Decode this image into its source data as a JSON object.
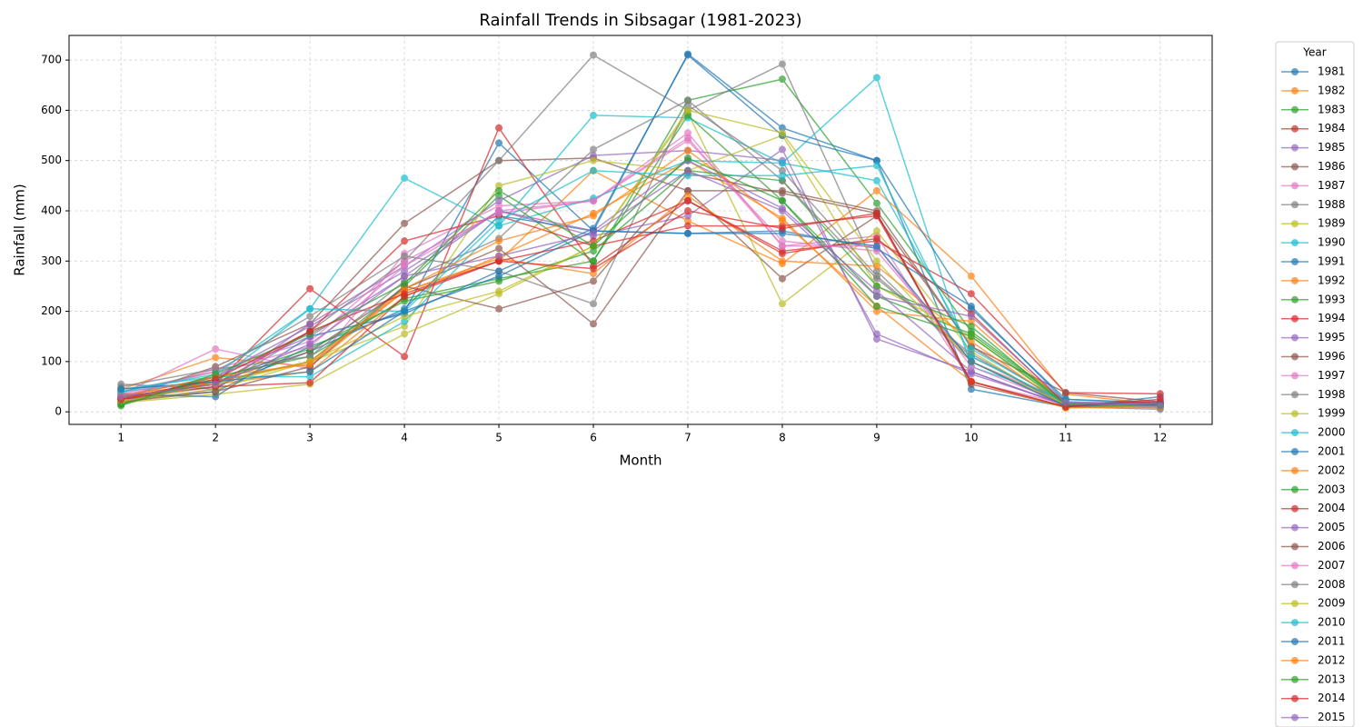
{
  "chart_data": {
    "type": "line",
    "title": "Rainfall Trends in Sibsagar (1981-2023)",
    "x_label": "Month",
    "y_label": "Rainfall (mm)",
    "legend_title": "Year",
    "legend": "outside right",
    "grid": true,
    "marker": "circle",
    "x": [
      1,
      2,
      3,
      4,
      5,
      6,
      7,
      8,
      9,
      10,
      11,
      12
    ],
    "xlim": [
      0.45,
      12.55
    ],
    "xticks": [
      1,
      2,
      3,
      4,
      5,
      6,
      7,
      8,
      9,
      10,
      11,
      12
    ],
    "ylim": [
      -25,
      749
    ],
    "yticks": [
      0,
      100,
      200,
      300,
      400,
      500,
      600,
      700
    ],
    "series": [
      {
        "name": "1981",
        "color": "#1f77b4",
        "values": [
          25,
          40,
          130,
          200,
          535,
          360,
          712,
          565,
          500,
          45,
          10,
          30
        ]
      },
      {
        "name": "1982",
        "color": "#ff7f0e",
        "values": [
          45,
          108,
          90,
          240,
          300,
          480,
          380,
          295,
          440,
          270,
          35,
          15
        ]
      },
      {
        "name": "1983",
        "color": "#2ca02c",
        "values": [
          15,
          60,
          100,
          250,
          430,
          300,
          620,
          662,
          415,
          160,
          20,
          10
        ]
      },
      {
        "name": "1984",
        "color": "#d62728",
        "values": [
          30,
          55,
          245,
          110,
          565,
          290,
          420,
          320,
          340,
          235,
          38,
          36
        ]
      },
      {
        "name": "1985",
        "color": "#9467bd",
        "values": [
          20,
          70,
          170,
          280,
          400,
          350,
          390,
          522,
          145,
          80,
          12,
          8
        ]
      },
      {
        "name": "1986",
        "color": "#8c564b",
        "values": [
          25,
          90,
          175,
          375,
          500,
          505,
          440,
          265,
          390,
          130,
          38,
          20
        ]
      },
      {
        "name": "1987",
        "color": "#e377c2",
        "values": [
          35,
          125,
          85,
          315,
          410,
          420,
          555,
          330,
          350,
          60,
          15,
          20
        ]
      },
      {
        "name": "1988",
        "color": "#7f7f7f",
        "values": [
          55,
          45,
          160,
          300,
          500,
          710,
          600,
          692,
          280,
          100,
          10,
          5
        ]
      },
      {
        "name": "1989",
        "color": "#bcbd22",
        "values": [
          18,
          35,
          55,
          155,
          235,
          330,
          595,
          215,
          360,
          120,
          8,
          12
        ]
      },
      {
        "name": "1990",
        "color": "#17becf",
        "values": [
          40,
          60,
          205,
          465,
          370,
          590,
          585,
          495,
          665,
          90,
          25,
          15
        ]
      },
      {
        "name": "1991",
        "color": "#1f77b4",
        "values": [
          30,
          50,
          120,
          205,
          390,
          360,
          355,
          360,
          325,
          210,
          20,
          15
        ]
      },
      {
        "name": "1992",
        "color": "#ff7f0e",
        "values": [
          35,
          55,
          80,
          230,
          310,
          395,
          500,
          385,
          200,
          180,
          15,
          20
        ]
      },
      {
        "name": "1993",
        "color": "#2ca02c",
        "values": [
          15,
          70,
          110,
          225,
          265,
          300,
          590,
          420,
          230,
          155,
          18,
          10
        ]
      },
      {
        "name": "1994",
        "color": "#d62728",
        "values": [
          30,
          55,
          160,
          340,
          390,
          330,
          370,
          370,
          390,
          60,
          10,
          15
        ]
      },
      {
        "name": "1995",
        "color": "#9467bd",
        "values": [
          20,
          45,
          175,
          290,
          420,
          510,
          520,
          500,
          155,
          75,
          15,
          10
        ]
      },
      {
        "name": "1996",
        "color": "#8c564b",
        "values": [
          25,
          60,
          120,
          245,
          325,
          175,
          440,
          440,
          400,
          130,
          15,
          10
        ]
      },
      {
        "name": "1997",
        "color": "#e377c2",
        "values": [
          30,
          85,
          140,
          300,
          395,
          420,
          540,
          340,
          320,
          100,
          20,
          15
        ]
      },
      {
        "name": "1998",
        "color": "#7f7f7f",
        "values": [
          40,
          80,
          190,
          310,
          280,
          215,
          610,
          480,
          270,
          110,
          15,
          10
        ]
      },
      {
        "name": "1999",
        "color": "#bcbd22",
        "values": [
          20,
          45,
          100,
          170,
          450,
          500,
          480,
          550,
          250,
          150,
          12,
          10
        ]
      },
      {
        "name": "2000",
        "color": "#17becf",
        "values": [
          45,
          70,
          70,
          180,
          370,
          425,
          500,
          495,
          460,
          125,
          18,
          12
        ]
      },
      {
        "name": "2001",
        "color": "#1f77b4",
        "values": [
          35,
          30,
          150,
          195,
          280,
          365,
          710,
          550,
          500,
          205,
          25,
          18
        ]
      },
      {
        "name": "2002",
        "color": "#ff7f0e",
        "values": [
          25,
          60,
          100,
          240,
          305,
          275,
          430,
          300,
          290,
          140,
          10,
          15
        ]
      },
      {
        "name": "2003",
        "color": "#2ca02c",
        "values": [
          18,
          65,
          125,
          220,
          260,
          320,
          480,
          460,
          250,
          170,
          12,
          12
        ]
      },
      {
        "name": "2004",
        "color": "#d62728",
        "values": [
          25,
          50,
          58,
          230,
          300,
          340,
          420,
          315,
          345,
          195,
          15,
          20
        ]
      },
      {
        "name": "2005",
        "color": "#9467bd",
        "values": [
          30,
          70,
          150,
          270,
          400,
          360,
          500,
          405,
          240,
          80,
          12,
          18
        ]
      },
      {
        "name": "2006",
        "color": "#8c564b",
        "values": [
          20,
          40,
          90,
          250,
          205,
          260,
          475,
          435,
          395,
          55,
          10,
          15
        ]
      },
      {
        "name": "2007",
        "color": "#e377c2",
        "values": [
          35,
          80,
          130,
          290,
          400,
          420,
          545,
          330,
          330,
          90,
          15,
          12
        ]
      },
      {
        "name": "2008",
        "color": "#7f7f7f",
        "values": [
          50,
          85,
          110,
          260,
          345,
          522,
          620,
          460,
          265,
          115,
          12,
          10
        ]
      },
      {
        "name": "2009",
        "color": "#bcbd22",
        "values": [
          20,
          55,
          100,
          190,
          240,
          330,
          600,
          555,
          300,
          100,
          15,
          10
        ]
      },
      {
        "name": "2010",
        "color": "#17becf",
        "values": [
          40,
          75,
          205,
          200,
          380,
          480,
          470,
          470,
          490,
          110,
          18,
          12
        ]
      },
      {
        "name": "2011",
        "color": "#1f77b4",
        "values": [
          45,
          60,
          80,
          200,
          270,
          360,
          355,
          355,
          330,
          100,
          12,
          15
        ]
      },
      {
        "name": "2012",
        "color": "#ff7f0e",
        "values": [
          30,
          70,
          95,
          245,
          340,
          390,
          520,
          380,
          210,
          60,
          8,
          10
        ]
      },
      {
        "name": "2013",
        "color": "#2ca02c",
        "values": [
          12,
          75,
          155,
          255,
          440,
          330,
          505,
          420,
          210,
          150,
          15,
          12
        ]
      },
      {
        "name": "2014",
        "color": "#d62728",
        "values": [
          25,
          65,
          160,
          235,
          300,
          285,
          400,
          365,
          395,
          60,
          10,
          25
        ]
      },
      {
        "name": "2015",
        "color": "#9467bd",
        "values": [
          30,
          55,
          135,
          270,
          310,
          355,
          480,
          400,
          230,
          190,
          18,
          12
        ]
      }
    ]
  }
}
